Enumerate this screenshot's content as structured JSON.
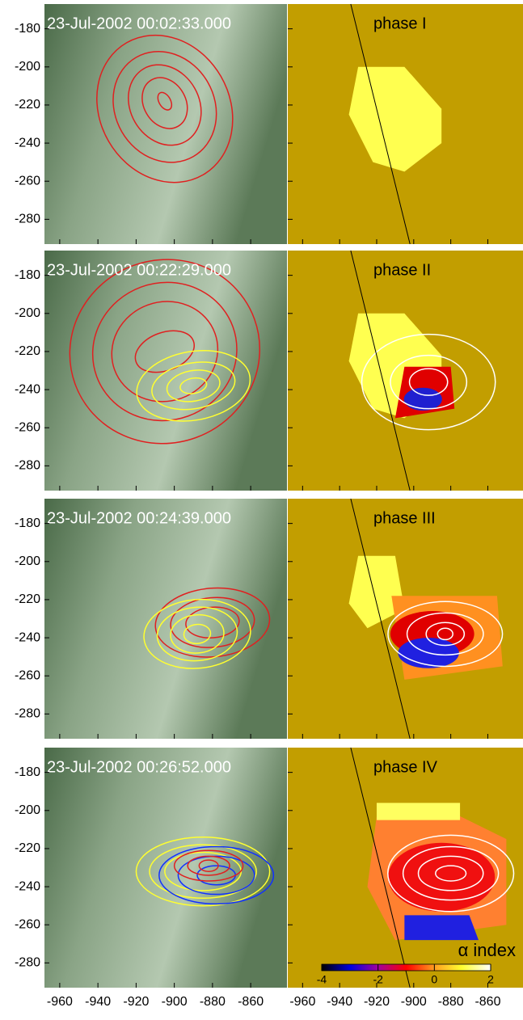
{
  "panels": [
    {
      "timestamp": "23-Jul-2002 00:02:33.000",
      "phase": "phase I"
    },
    {
      "timestamp": "23-Jul-2002 00:22:29.000",
      "phase": "phase II"
    },
    {
      "timestamp": "23-Jul-2002 00:24:39.000",
      "phase": "phase III"
    },
    {
      "timestamp": "23-Jul-2002 00:26:52.000",
      "phase": "phase IV"
    }
  ],
  "xlim": [
    -968,
    -841
  ],
  "ylim": [
    -293,
    -167
  ],
  "xticks": [
    -960,
    -940,
    -920,
    -900,
    -880,
    -860
  ],
  "yticks": [
    -180,
    -200,
    -220,
    -240,
    -260,
    -280
  ],
  "colorbar": {
    "label": "α index",
    "lim": [
      -4,
      2
    ],
    "ticks": [
      -4,
      -2,
      0,
      2
    ]
  }
}
